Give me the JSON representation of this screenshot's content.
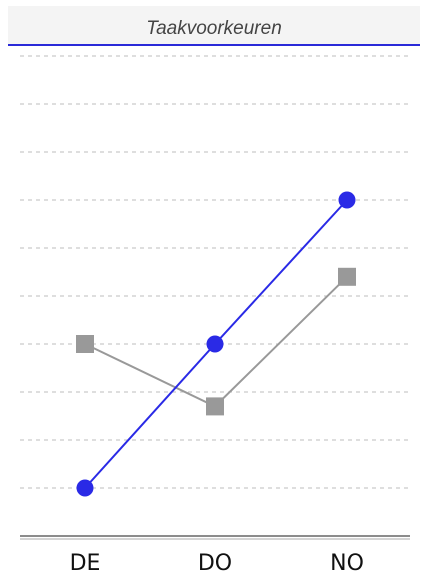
{
  "header": {
    "title": "Taakvoorkeuren"
  },
  "chart_data": {
    "type": "line",
    "title": "Taakvoorkeuren",
    "categories": [
      "DE",
      "DO",
      "NO"
    ],
    "series": [
      {
        "values": [
          1.0,
          4.0,
          7.0
        ],
        "color": "#2a2ae6",
        "marker": "circle"
      },
      {
        "values": [
          4.0,
          2.7,
          5.4
        ],
        "color": "#999999",
        "marker": "square"
      }
    ],
    "ylim": [
      0,
      10
    ],
    "grid": true,
    "legend": "none"
  }
}
